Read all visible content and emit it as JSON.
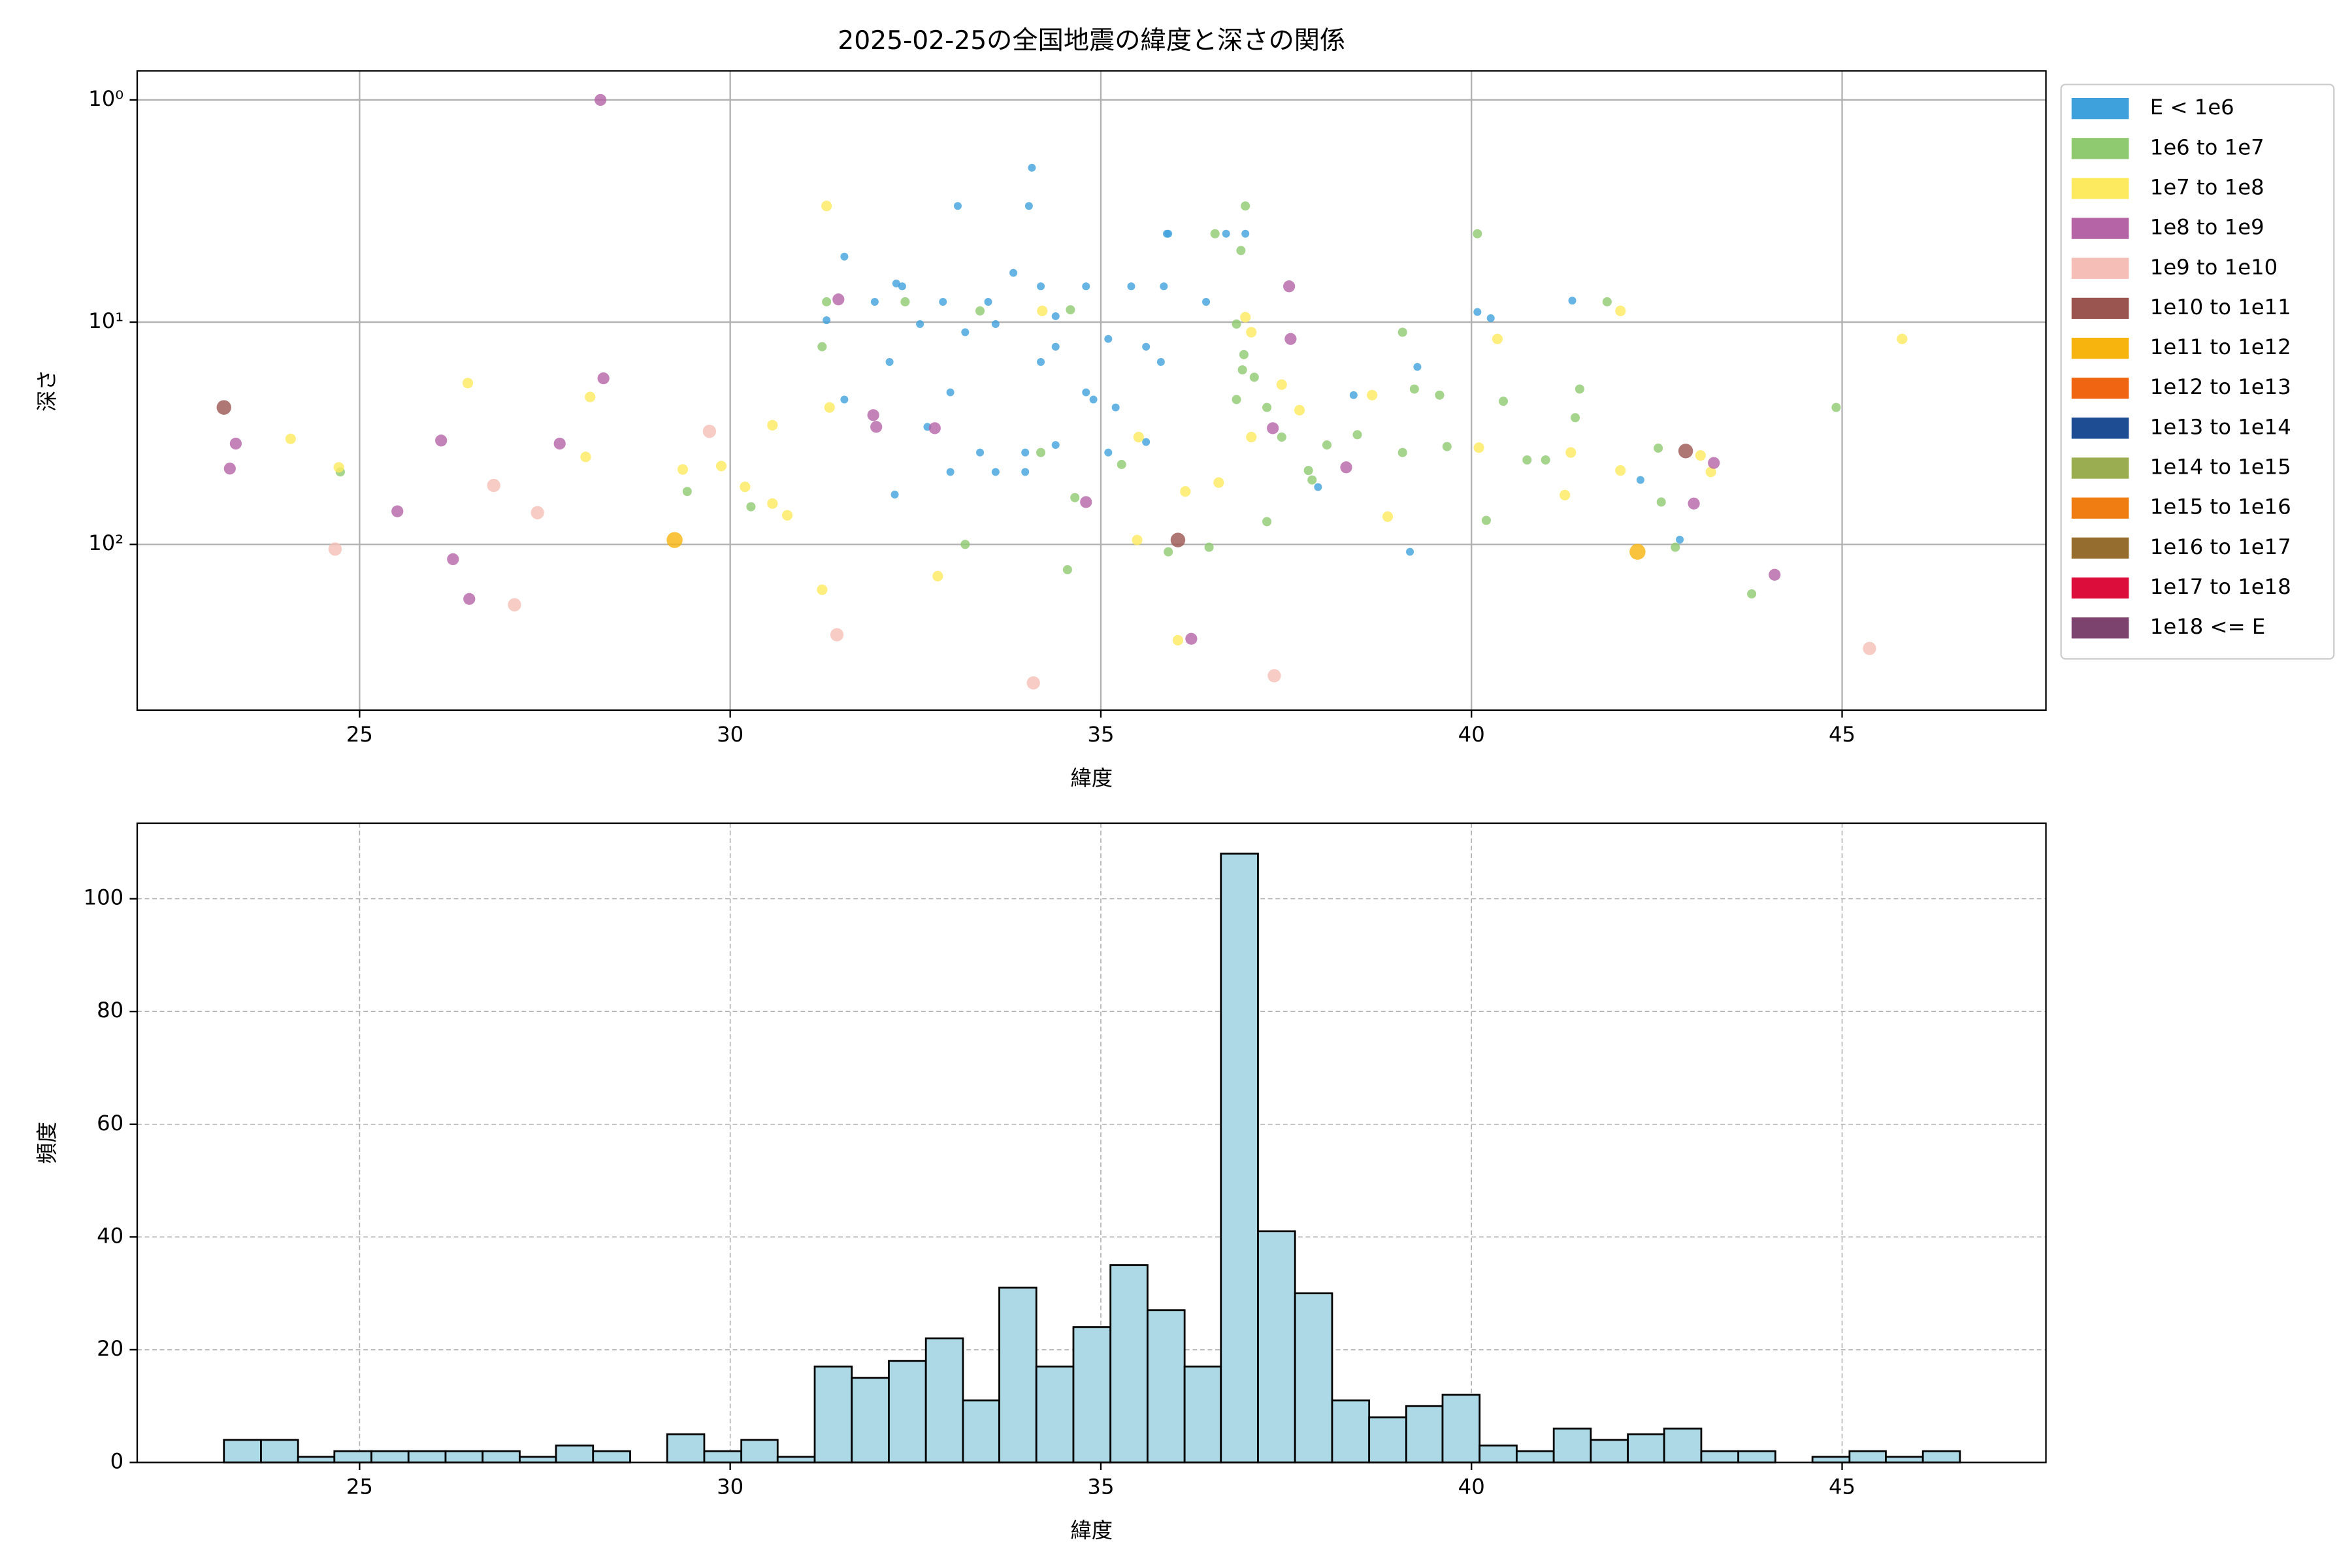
{
  "chart_data": [
    {
      "type": "scatter",
      "title": "2025-02-25の全国地震の緯度と深さの関係",
      "x_label": "緯度",
      "y_label": "深さ",
      "xlim": [
        22,
        47.75
      ],
      "ylim": [
        0.74,
        557
      ],
      "log_y": true,
      "y_inverted": true,
      "xticks": [
        25,
        30,
        35,
        40,
        45
      ],
      "yticks": [
        {
          "value": 1,
          "label": "10⁰"
        },
        {
          "value": 10,
          "label": "10¹"
        },
        {
          "value": 100,
          "label": "10²"
        }
      ],
      "grid": true,
      "legend": "outside-right",
      "series": [
        {
          "name": "E < 1e6",
          "color": "#3fa1dc",
          "x": [
            34.07,
            34.03,
            33.07,
            31.54,
            32.24,
            31.95,
            32.32,
            32.87,
            33.48,
            33.82,
            34.19,
            34.39,
            34.8,
            35.41,
            35.91,
            35.85,
            36.42,
            36.69,
            36.95,
            32.56,
            33.17,
            33.58,
            34.39,
            35.1,
            35.61,
            32.15,
            32.97,
            34.19,
            34.8,
            35.81,
            31.3,
            31.54,
            32.66,
            32.97,
            33.37,
            33.98,
            34.39,
            35.1,
            35.61,
            32.22,
            33.58,
            33.98,
            35.2,
            34.9,
            35.89,
            40.08,
            40.26,
            41.36,
            42.28,
            42.81,
            39.17,
            39.27,
            38.41,
            37.93
          ],
          "values": [
            2.02,
            3.0,
            3.0,
            5.07,
            6.7,
            8.1,
            6.9,
            8.1,
            8.1,
            6.0,
            6.9,
            9.4,
            6.9,
            6.9,
            4.0,
            6.9,
            8.1,
            4.0,
            4.0,
            10.2,
            11.1,
            10.2,
            12.9,
            11.9,
            12.9,
            15.1,
            20.7,
            15.1,
            20.7,
            15.1,
            9.8,
            22.3,
            29.6,
            47.2,
            38.6,
            47.2,
            35.7,
            38.6,
            34.6,
            59.7,
            47.2,
            38.6,
            24.2,
            22.3,
            4.0,
            9.0,
            9.6,
            8.0,
            51.3,
            95.2,
            108,
            15.9,
            21.3,
            55.2
          ]
        },
        {
          "name": "1e6 to 1e7",
          "color": "#8fc970",
          "x": [
            36.95,
            40.08,
            36.54,
            36.89,
            31.3,
            31.24,
            32.36,
            33.37,
            34.59,
            36.83,
            36.93,
            36.91,
            37.07,
            36.83,
            37.24,
            37.44,
            37.8,
            37.85,
            38.05,
            38.46,
            39.07,
            39.57,
            40.43,
            41.0,
            41.46,
            42.52,
            42.56,
            44.92,
            43.78,
            42.75,
            40.2,
            37.24,
            36.46,
            35.91,
            34.55,
            33.17,
            30.28,
            29.42,
            24.74,
            34.65,
            35.28,
            34.19,
            39.67,
            40.75,
            41.4,
            39.23,
            39.07,
            41.83
          ],
          "values": [
            3.0,
            4.0,
            4.0,
            4.76,
            8.1,
            12.9,
            8.1,
            8.9,
            8.8,
            10.2,
            14.0,
            16.4,
            17.7,
            22.3,
            24.2,
            32.9,
            46.5,
            51.3,
            35.7,
            32.1,
            38.6,
            21.3,
            22.7,
            41.7,
            20.0,
            36.9,
            64.5,
            24.2,
            167,
            103,
            78,
            79,
            103,
            108,
            130,
            100,
            67.7,
            57.8,
            47.2,
            61.6,
            43.7,
            38.6,
            36.3,
            41.7,
            26.9,
            20.0,
            11.1,
            8.1
          ]
        },
        {
          "name": "1e7 to 1e8",
          "color": "#feea5e",
          "x": [
            31.3,
            31.34,
            26.46,
            24.07,
            24.72,
            28.11,
            28.05,
            29.36,
            29.88,
            30.2,
            30.57,
            30.77,
            30.57,
            31.24,
            32.8,
            35.49,
            36.04,
            35.51,
            36.14,
            36.59,
            37.03,
            36.95,
            37.03,
            37.44,
            37.68,
            38.66,
            38.87,
            40.1,
            40.35,
            41.26,
            41.34,
            42.01,
            42.01,
            43.09,
            43.23,
            45.81,
            34.21
          ],
          "values": [
            3.0,
            24.2,
            18.8,
            33.5,
            45,
            21.7,
            40.4,
            46.0,
            44.4,
            55.1,
            65.5,
            74,
            29.1,
            160,
            139,
            95.6,
            270,
            32.9,
            57.8,
            52.7,
            32.9,
            9.5,
            11.1,
            19.1,
            24.9,
            21.3,
            75,
            36.7,
            11.9,
            60,
            38.6,
            46.5,
            8.9,
            39.8,
            47.2,
            11.9,
            8.9
          ]
        },
        {
          "name": "1e8 to 1e9",
          "color": "#b564a6",
          "x": [
            28.25,
            31.46,
            28.29,
            23.25,
            23.33,
            25.51,
            26.1,
            27.7,
            26.26,
            26.48,
            31.93,
            31.97,
            32.76,
            34.8,
            37.32,
            37.54,
            36.22,
            38.31,
            43.0,
            43.27,
            44.09,
            37.56
          ],
          "values": [
            1,
            7.9,
            17.9,
            45.6,
            35.2,
            71.0,
            34.1,
            35.2,
            116.6,
            176,
            26.2,
            29.6,
            30.0,
            64.5,
            30.0,
            6.9,
            266,
            45,
            65.5,
            43,
            137,
            11.9
          ]
        },
        {
          "name": "1e9 to 1e10",
          "color": "#f5bfb7",
          "x": [
            24.67,
            26.81,
            27.4,
            27.09,
            29.72,
            31.44,
            37.34,
            34.09,
            45.37
          ],
          "values": [
            105,
            54.3,
            72,
            187,
            31.0,
            255,
            390,
            420,
            294
          ]
        },
        {
          "name": "1e10 to 1e11",
          "color": "#9a5550",
          "x": [
            23.17,
            36.04,
            42.89
          ],
          "values": [
            24.2,
            95.6,
            38.0
          ]
        },
        {
          "name": "1e11 to 1e12",
          "color": "#f8b40e",
          "x": [
            29.25,
            42.24
          ],
          "values": [
            95.6,
            108
          ]
        },
        {
          "name": "1e12 to 1e13",
          "color": "#ef6511",
          "x": [],
          "values": []
        },
        {
          "name": "1e13 to 1e14",
          "color": "#1f4d93",
          "x": [],
          "values": []
        },
        {
          "name": "1e14 to 1e15",
          "color": "#9aad50",
          "x": [],
          "values": []
        },
        {
          "name": "1e15 to 1e16",
          "color": "#ef7d12",
          "x": [],
          "values": []
        },
        {
          "name": "1e16 to 1e17",
          "color": "#956d2e",
          "x": [],
          "values": []
        },
        {
          "name": "1e17 to 1e18",
          "color": "#dc0c3b",
          "x": [],
          "values": []
        },
        {
          "name": "1e18 <= E",
          "color": "#7b436e",
          "x": [],
          "values": []
        }
      ]
    },
    {
      "type": "histogram",
      "x_label": "緯度",
      "y_label": "頻度",
      "xlim": [
        22,
        47.75
      ],
      "ylim": [
        0,
        113.4
      ],
      "xticks": [
        25,
        30,
        35,
        40,
        45
      ],
      "yticks": [
        0,
        20,
        40,
        60,
        80,
        100
      ],
      "grid": true,
      "color": "#add8e6",
      "edge_color": "#000000",
      "bins": [
        23.17,
        23.67,
        24.17,
        24.66,
        25.16,
        25.66,
        26.16,
        26.66,
        27.16,
        27.65,
        28.15,
        28.65,
        29.15,
        29.65,
        30.15,
        30.64,
        31.14,
        31.64,
        32.14,
        32.64,
        33.14,
        33.63,
        34.13,
        34.63,
        35.13,
        35.63,
        36.13,
        36.62,
        37.12,
        37.62,
        38.12,
        38.62,
        39.12,
        39.61,
        40.11,
        40.61,
        41.11,
        41.61,
        42.11,
        42.6,
        43.1,
        43.6,
        44.1,
        44.6,
        45.1,
        45.59,
        46.09,
        46.59
      ],
      "values": [
        4,
        4,
        1,
        2,
        2,
        2,
        2,
        2,
        1,
        3,
        2,
        0,
        5,
        2,
        4,
        1,
        17,
        15,
        18,
        22,
        11,
        31,
        17,
        24,
        35,
        27,
        17,
        108,
        41,
        30,
        11,
        8,
        10,
        12,
        3,
        2,
        6,
        4,
        5,
        6,
        2,
        2,
        0,
        1,
        2,
        1,
        2
      ]
    }
  ]
}
